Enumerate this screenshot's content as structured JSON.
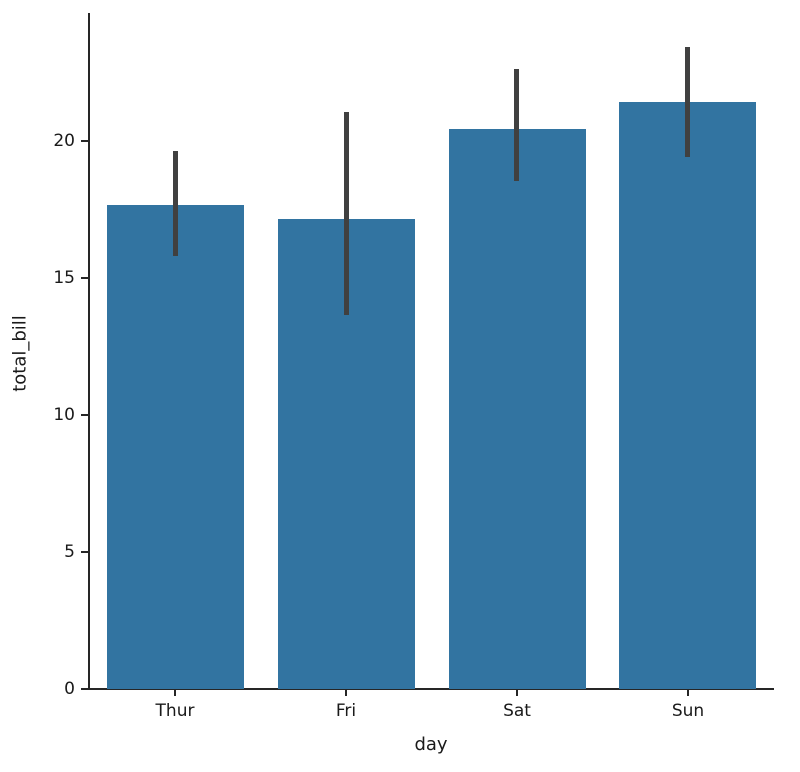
{
  "chart_data": {
    "type": "bar",
    "title": "",
    "xlabel": "day",
    "ylabel": "total_bill",
    "categories": [
      "Thur",
      "Fri",
      "Sat",
      "Sun"
    ],
    "values": [
      17.68,
      17.15,
      20.45,
      21.41
    ],
    "error_bars": {
      "low": [
        15.8,
        13.65,
        18.55,
        19.45
      ],
      "high": [
        19.65,
        21.05,
        22.65,
        23.45
      ]
    },
    "yticks": [
      0,
      5,
      10,
      15,
      20
    ],
    "ylim": [
      0,
      24.64
    ],
    "grid": false,
    "legend": null,
    "bar_width_fraction": 0.8,
    "colors": {
      "bar": "#3274a1",
      "error": "#404040",
      "text": "#1a1a1a",
      "spine": "#262626",
      "background": "#ffffff"
    }
  }
}
